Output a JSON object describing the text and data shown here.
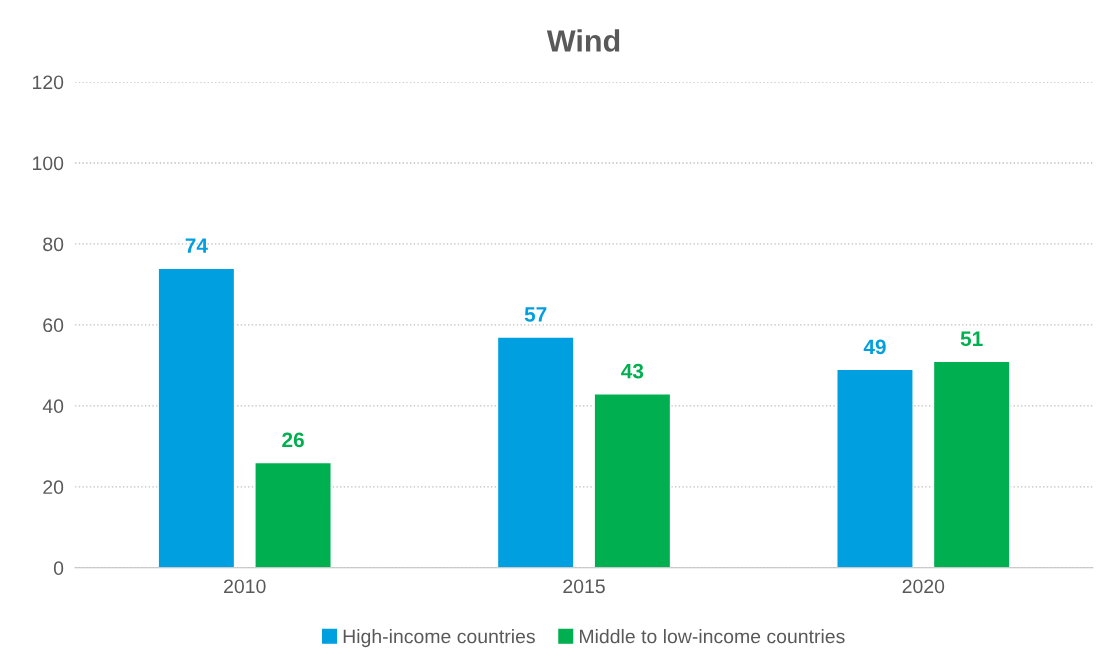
{
  "chart_data": {
    "type": "bar",
    "title": "Wind",
    "categories": [
      "2010",
      "2015",
      "2020"
    ],
    "series": [
      {
        "name": "High-income countries",
        "color": "#009fdf",
        "values": [
          74,
          57,
          49
        ]
      },
      {
        "name": "Middle to low-income countries",
        "color": "#00b050",
        "values": [
          26,
          43,
          51
        ]
      }
    ],
    "ylim": [
      0,
      120
    ],
    "yticks": [
      0,
      20,
      40,
      60,
      80,
      100,
      120
    ],
    "grid": "y",
    "legend": "bottom",
    "data_labels": true
  }
}
